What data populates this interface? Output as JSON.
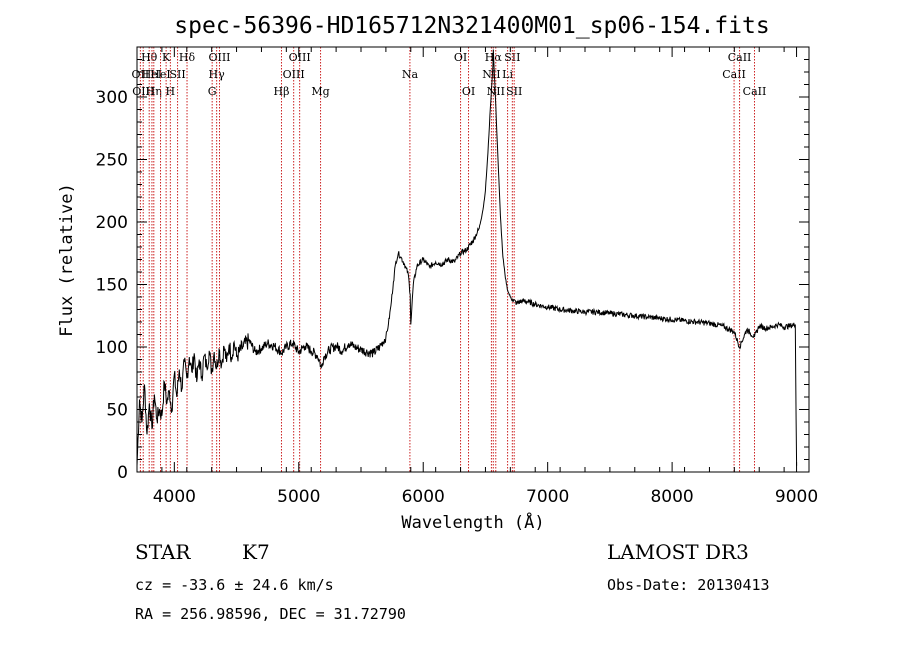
{
  "chart_data": {
    "type": "line",
    "title": "spec-56396-HD165712N321400M01_sp06-154.fits",
    "xlabel": "Wavelength (Å)",
    "ylabel": "Flux (relative)",
    "xlim": [
      3700,
      9100
    ],
    "ylim": [
      0,
      340
    ],
    "xticks": [
      4000,
      5000,
      6000,
      7000,
      8000,
      9000
    ],
    "yticks": [
      0,
      50,
      100,
      150,
      200,
      250,
      300
    ],
    "series": [
      {
        "name": "spectrum",
        "x": [
          3700,
          3720,
          3740,
          3760,
          3780,
          3800,
          3820,
          3840,
          3860,
          3880,
          3900,
          3920,
          3940,
          3960,
          3980,
          4000,
          4020,
          4040,
          4060,
          4080,
          4100,
          4120,
          4140,
          4160,
          4180,
          4200,
          4220,
          4240,
          4260,
          4280,
          4300,
          4320,
          4340,
          4360,
          4380,
          4400,
          4420,
          4440,
          4460,
          4480,
          4500,
          4550,
          4600,
          4650,
          4700,
          4750,
          4800,
          4850,
          4860,
          4900,
          4950,
          5000,
          5050,
          5100,
          5150,
          5170,
          5180,
          5200,
          5250,
          5300,
          5350,
          5400,
          5450,
          5500,
          5550,
          5600,
          5650,
          5700,
          5720,
          5740,
          5760,
          5780,
          5800,
          5820,
          5850,
          5880,
          5895,
          5900,
          5920,
          5950,
          6000,
          6050,
          6100,
          6150,
          6200,
          6250,
          6300,
          6350,
          6400,
          6450,
          6480,
          6500,
          6520,
          6540,
          6560,
          6563,
          6580,
          6600,
          6620,
          6640,
          6660,
          6680,
          6700,
          6720,
          6750,
          6800,
          6850,
          6900,
          6950,
          7000,
          7100,
          7200,
          7300,
          7400,
          7500,
          7600,
          7700,
          7800,
          7900,
          8000,
          8100,
          8200,
          8300,
          8400,
          8500,
          8542,
          8600,
          8662,
          8700,
          8750,
          8800,
          8850,
          8900,
          8950,
          8990,
          9000
        ],
        "values": [
          5,
          58,
          40,
          70,
          30,
          55,
          35,
          62,
          42,
          50,
          45,
          72,
          55,
          65,
          50,
          78,
          60,
          82,
          66,
          88,
          75,
          92,
          80,
          95,
          72,
          90,
          76,
          93,
          84,
          97,
          80,
          96,
          83,
          98,
          86,
          100,
          88,
          102,
          92,
          104,
          92,
          100,
          105,
          96,
          99,
          103,
          101,
          97,
          95,
          100,
          103,
          96,
          101,
          97,
          93,
          88,
          83,
          92,
          98,
          101,
          97,
          103,
          100,
          98,
          96,
          95,
          100,
          108,
          118,
          133,
          152,
          168,
          175,
          172,
          166,
          158,
          142,
          118,
          150,
          165,
          170,
          164,
          168,
          166,
          170,
          168,
          175,
          178,
          185,
          195,
          210,
          225,
          255,
          292,
          325,
          338,
          300,
          252,
          205,
          172,
          155,
          145,
          140,
          138,
          135,
          137,
          136,
          134,
          133,
          132,
          130,
          129,
          128,
          128,
          127,
          126,
          125,
          124,
          123,
          122,
          121,
          120,
          119,
          117,
          112,
          100,
          114,
          108,
          117,
          115,
          116,
          118,
          116,
          117,
          118,
          5
        ]
      }
    ],
    "line_markers": [
      {
        "wavelength": 3727,
        "label": "OII",
        "row": 1
      },
      {
        "wavelength": 3750,
        "label": "OIII",
        "row": 2
      },
      {
        "wavelength": 3798,
        "label": "Hθ",
        "row": 0
      },
      {
        "wavelength": 3820,
        "label": "HeI",
        "row": 1
      },
      {
        "wavelength": 3835,
        "label": "Hη",
        "row": 2
      },
      {
        "wavelength": 3889,
        "label": "HeI",
        "row": 1
      },
      {
        "wavelength": 3934,
        "label": "K",
        "row": 0
      },
      {
        "wavelength": 3968,
        "label": "H",
        "row": 2
      },
      {
        "wavelength": 4026,
        "label": "SII",
        "row": 1
      },
      {
        "wavelength": 4102,
        "label": "Hδ",
        "row": 0
      },
      {
        "wavelength": 4304,
        "label": "G",
        "row": 2
      },
      {
        "wavelength": 4340,
        "label": "Hγ",
        "row": 1
      },
      {
        "wavelength": 4363,
        "label": "OIII",
        "row": 0
      },
      {
        "wavelength": 4861,
        "label": "Hβ",
        "row": 2
      },
      {
        "wavelength": 4959,
        "label": "OIII",
        "row": 1
      },
      {
        "wavelength": 5007,
        "label": "OIII",
        "row": 0
      },
      {
        "wavelength": 5175,
        "label": "Mg",
        "row": 2
      },
      {
        "wavelength": 5893,
        "label": "Na",
        "row": 1
      },
      {
        "wavelength": 6300,
        "label": "OI",
        "row": 0
      },
      {
        "wavelength": 6364,
        "label": "OI",
        "row": 2
      },
      {
        "wavelength": 6548,
        "label": "NII",
        "row": 1
      },
      {
        "wavelength": 6563,
        "label": "Hα",
        "row": 0
      },
      {
        "wavelength": 6583,
        "label": "NII",
        "row": 2
      },
      {
        "wavelength": 6678,
        "label": "Li",
        "row": 1
      },
      {
        "wavelength": 6716,
        "label": "SII",
        "row": 0
      },
      {
        "wavelength": 6731,
        "label": "SII",
        "row": 2
      },
      {
        "wavelength": 8498,
        "label": "CaII",
        "row": 1
      },
      {
        "wavelength": 8542,
        "label": "CaII",
        "row": 0
      },
      {
        "wavelength": 8662,
        "label": "CaII",
        "row": 2
      }
    ],
    "colors": {
      "spectrum": "#000000",
      "marker": "#cc2222",
      "axes": "#000000"
    }
  },
  "info": {
    "object_type": "STAR",
    "subclass": "K7",
    "redshift": "cz = -33.6 ± 24.6 km/s",
    "coords": "RA = 256.98596, DEC =  31.72790",
    "survey": "LAMOST DR3",
    "obs_date": "Obs-Date: 20130413"
  }
}
